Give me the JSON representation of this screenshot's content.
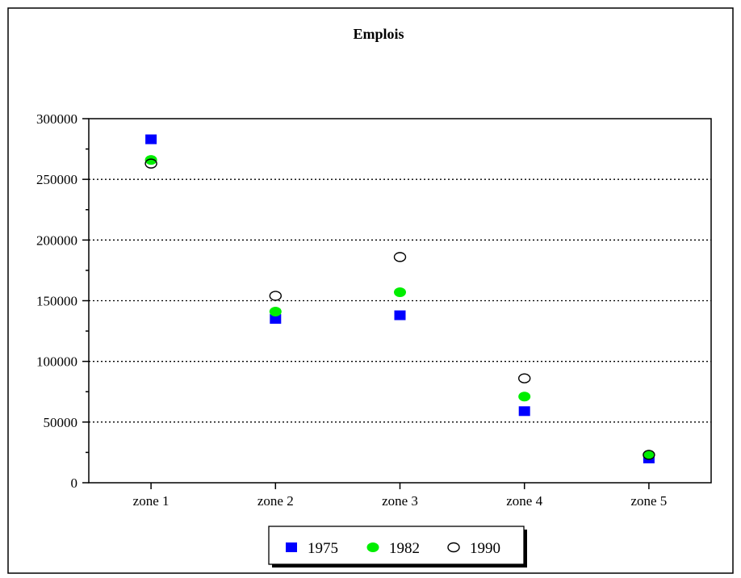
{
  "chart_data": {
    "type": "scatter",
    "title": "Emplois",
    "xlabel": "",
    "ylabel": "",
    "categories": [
      "zone 1",
      "zone 2",
      "zone 3",
      "zone 4",
      "zone 5"
    ],
    "ylim": [
      0,
      300000
    ],
    "yticks": [
      0,
      50000,
      100000,
      150000,
      200000,
      250000,
      300000
    ],
    "ytick_labels": [
      "0",
      "50000",
      "100000",
      "150000",
      "200000",
      "250000",
      "300000"
    ],
    "grid": "horizontal-dotted",
    "legend_position": "bottom",
    "series": [
      {
        "name": "1975",
        "marker": "square",
        "color": "#0000ff",
        "values": [
          283000,
          135000,
          138000,
          59000,
          20000
        ]
      },
      {
        "name": "1982",
        "marker": "circle",
        "color": "#00ee00",
        "values": [
          266000,
          141000,
          157000,
          71000,
          23000
        ]
      },
      {
        "name": "1990",
        "marker": "open-circle",
        "color": "#000000",
        "values": [
          263000,
          154000,
          186000,
          86000,
          23000
        ]
      }
    ]
  }
}
